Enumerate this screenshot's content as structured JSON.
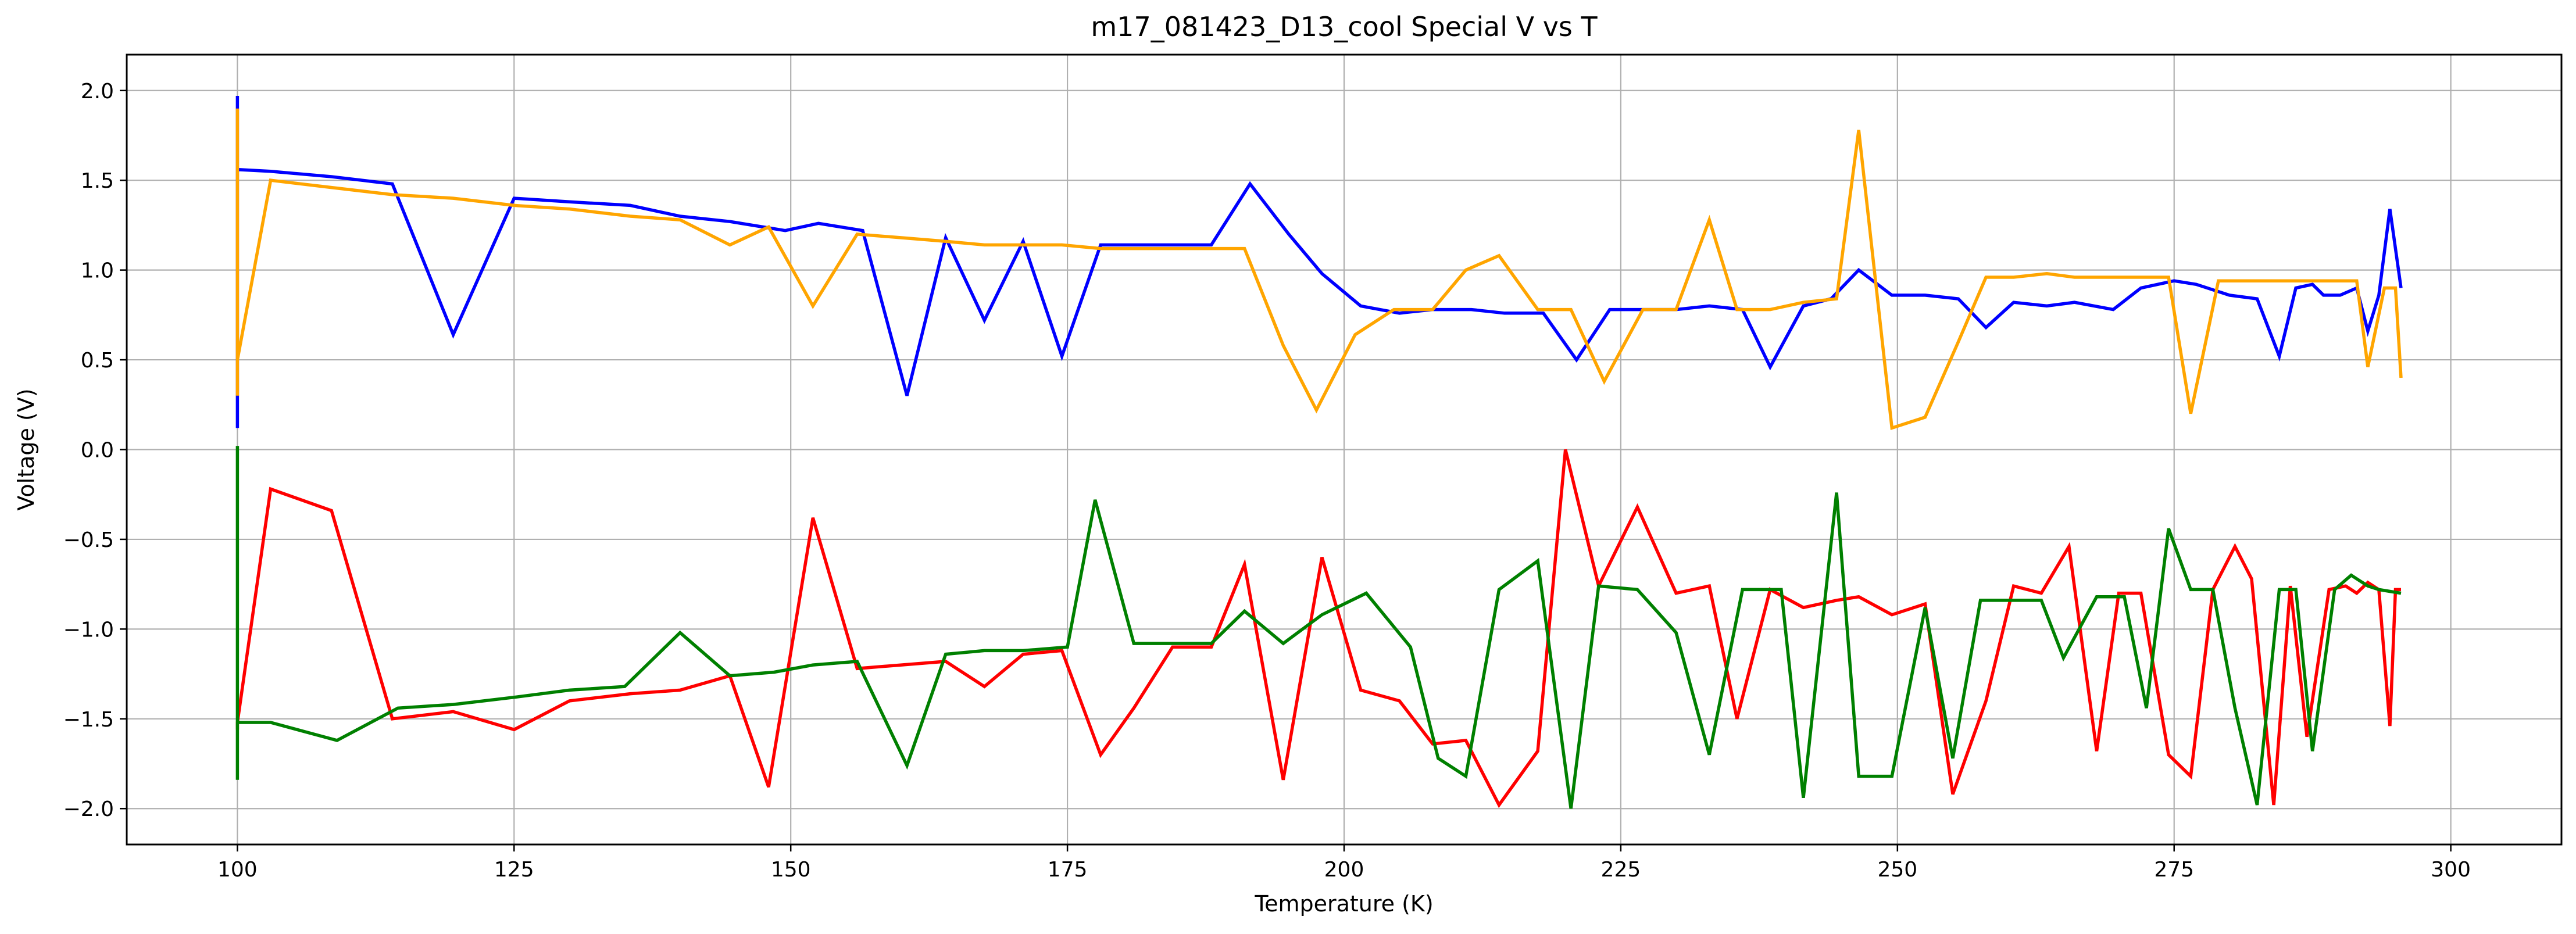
{
  "chart_data": {
    "type": "line",
    "title": "m17_081423_D13_cool Special V vs T",
    "xlabel": "Temperature (K)",
    "ylabel": "Voltage (V)",
    "xlim": [
      90,
      310
    ],
    "ylim": [
      -2.2,
      2.2
    ],
    "xticks": [
      100,
      125,
      150,
      175,
      200,
      225,
      250,
      275,
      300
    ],
    "yticks": [
      -2.0,
      -1.5,
      -1.0,
      -0.5,
      0.0,
      0.5,
      1.0,
      1.5,
      2.0
    ],
    "grid": true,
    "legend": "none",
    "series": [
      {
        "color": "#0000ff",
        "x": [
          100,
          100,
          100,
          100,
          100,
          103,
          108.5,
          114,
          119.5,
          125,
          130,
          135.5,
          140,
          144.5,
          149.5,
          152.5,
          156.5,
          160.5,
          164,
          167.5,
          171,
          174.5,
          178,
          181,
          184.5,
          188,
          191.5,
          195,
          198,
          201.5,
          205,
          208,
          211.5,
          214.5,
          218,
          221,
          224,
          227.5,
          230,
          233,
          236,
          238.5,
          241.5,
          244,
          246.5,
          249.5,
          252.5,
          255.5,
          258,
          260.5,
          263.5,
          266,
          269.5,
          272,
          275,
          277,
          280,
          282.5,
          284.5,
          286,
          287.5,
          288.5,
          290,
          291.5,
          292.5,
          293.5,
          294.5,
          295.5
        ],
        "y": [
          1.97,
          1.92,
          0.12,
          0.2,
          1.56,
          1.55,
          1.52,
          1.48,
          0.64,
          1.4,
          1.38,
          1.36,
          1.3,
          1.27,
          1.22,
          1.26,
          1.22,
          0.3,
          1.18,
          0.72,
          1.16,
          0.52,
          1.14,
          1.14,
          1.14,
          1.14,
          1.48,
          1.2,
          0.98,
          0.8,
          0.76,
          0.78,
          0.78,
          0.76,
          0.76,
          0.5,
          0.78,
          0.78,
          0.78,
          0.8,
          0.78,
          0.46,
          0.8,
          0.84,
          1.0,
          0.86,
          0.86,
          0.84,
          0.68,
          0.82,
          0.8,
          0.82,
          0.78,
          0.9,
          0.94,
          0.92,
          0.86,
          0.84,
          0.52,
          0.9,
          0.92,
          0.86,
          0.86,
          0.9,
          0.66,
          0.86,
          1.34,
          0.9
        ]
      },
      {
        "color": "#ffa500",
        "x": [
          100,
          100,
          100,
          103,
          108.5,
          114,
          119.5,
          125,
          130,
          135.5,
          140,
          144.5,
          148,
          152,
          156,
          160,
          164,
          167.5,
          171,
          174.5,
          178,
          181,
          184.5,
          188,
          191,
          194.5,
          197.5,
          201,
          204.5,
          208,
          211,
          214,
          217.5,
          220.5,
          223.5,
          227,
          230,
          233,
          235.5,
          238.5,
          241.5,
          244.5,
          246.5,
          249.5,
          252.5,
          255.5,
          258,
          260.5,
          263.5,
          266,
          269.5,
          272,
          274.5,
          276.5,
          279,
          281.5,
          284,
          286,
          288,
          290.5,
          291.5,
          292.5,
          294,
          295,
          295.5
        ],
        "y": [
          1.9,
          0.3,
          0.5,
          1.5,
          1.46,
          1.42,
          1.4,
          1.36,
          1.34,
          1.3,
          1.28,
          1.14,
          1.24,
          0.8,
          1.2,
          1.18,
          1.16,
          1.14,
          1.14,
          1.14,
          1.12,
          1.12,
          1.12,
          1.12,
          1.12,
          0.58,
          0.22,
          0.64,
          0.78,
          0.78,
          1.0,
          1.08,
          0.78,
          0.78,
          0.38,
          0.78,
          0.78,
          1.28,
          0.78,
          0.78,
          0.82,
          0.84,
          1.78,
          0.12,
          0.18,
          0.6,
          0.96,
          0.96,
          0.98,
          0.96,
          0.96,
          0.96,
          0.96,
          0.2,
          0.94,
          0.94,
          0.94,
          0.94,
          0.94,
          0.94,
          0.94,
          0.46,
          0.9,
          0.9,
          0.4
        ]
      },
      {
        "color": "#ff0000",
        "x": [
          100,
          100,
          103,
          108.5,
          114,
          119.5,
          125,
          130,
          135.5,
          140,
          144.5,
          148,
          152,
          156,
          160,
          164,
          167.5,
          171,
          174.5,
          178,
          181,
          184.5,
          188,
          191,
          194.5,
          198,
          201.5,
          205,
          208,
          211,
          214,
          217.5,
          220,
          223,
          226.5,
          230,
          233,
          235.5,
          238.5,
          241.5,
          244.5,
          246.5,
          249.5,
          252.5,
          255,
          258,
          260.5,
          263,
          265.5,
          268,
          270,
          272,
          274.5,
          276.5,
          278.5,
          280.5,
          282,
          284,
          285.5,
          287,
          289,
          290.5,
          291.5,
          292.5,
          293.5,
          294.5,
          295,
          295.5
        ],
        "y": [
          -1.56,
          -1.52,
          -0.22,
          -0.34,
          -1.5,
          -1.46,
          -1.56,
          -1.4,
          -1.36,
          -1.34,
          -1.26,
          -1.88,
          -0.38,
          -1.22,
          -1.2,
          -1.18,
          -1.32,
          -1.14,
          -1.12,
          -1.7,
          -1.44,
          -1.1,
          -1.1,
          -0.64,
          -1.84,
          -0.6,
          -1.34,
          -1.4,
          -1.64,
          -1.62,
          -1.98,
          -1.68,
          0.0,
          -0.76,
          -0.32,
          -0.8,
          -0.76,
          -1.5,
          -0.78,
          -0.88,
          -0.84,
          -0.82,
          -0.92,
          -0.86,
          -1.92,
          -1.4,
          -0.76,
          -0.8,
          -0.54,
          -1.68,
          -0.8,
          -0.8,
          -1.7,
          -1.82,
          -0.78,
          -0.54,
          -0.72,
          -1.98,
          -0.76,
          -1.6,
          -0.78,
          -0.76,
          -0.8,
          -0.74,
          -0.78,
          -1.54,
          -0.78,
          -0.78
        ]
      },
      {
        "color": "#008000",
        "x": [
          100,
          100,
          100,
          103,
          109,
          114.5,
          119.5,
          125,
          130,
          135,
          140,
          144.5,
          148.5,
          152,
          156,
          160.5,
          164,
          167.5,
          171,
          175,
          177.5,
          181,
          184.5,
          188,
          191,
          194.5,
          198,
          202,
          206,
          208.5,
          211,
          214,
          217.5,
          220.5,
          223,
          226.5,
          230,
          233,
          236,
          239.5,
          241.5,
          244.5,
          246.5,
          249.5,
          252.5,
          255,
          257.5,
          260,
          263,
          265,
          268,
          270.5,
          272.5,
          274.5,
          276.5,
          278.5,
          280.5,
          282.5,
          284.5,
          286,
          287.5,
          289.5,
          291,
          292.5,
          293.5,
          295.5
        ],
        "y": [
          -1.84,
          0.02,
          -1.52,
          -1.52,
          -1.62,
          -1.44,
          -1.42,
          -1.38,
          -1.34,
          -1.32,
          -1.02,
          -1.26,
          -1.24,
          -1.2,
          -1.18,
          -1.76,
          -1.14,
          -1.12,
          -1.12,
          -1.1,
          -0.28,
          -1.08,
          -1.08,
          -1.08,
          -0.9,
          -1.08,
          -0.92,
          -0.8,
          -1.1,
          -1.72,
          -1.82,
          -0.78,
          -0.62,
          -2.0,
          -0.76,
          -0.78,
          -1.02,
          -1.7,
          -0.78,
          -0.78,
          -1.94,
          -0.24,
          -1.82,
          -1.82,
          -0.88,
          -1.72,
          -0.84,
          -0.84,
          -0.84,
          -1.16,
          -0.82,
          -0.82,
          -1.44,
          -0.44,
          -0.78,
          -0.78,
          -1.44,
          -1.98,
          -0.78,
          -0.78,
          -1.68,
          -0.78,
          -0.7,
          -0.76,
          -0.78,
          -0.8
        ]
      }
    ]
  }
}
